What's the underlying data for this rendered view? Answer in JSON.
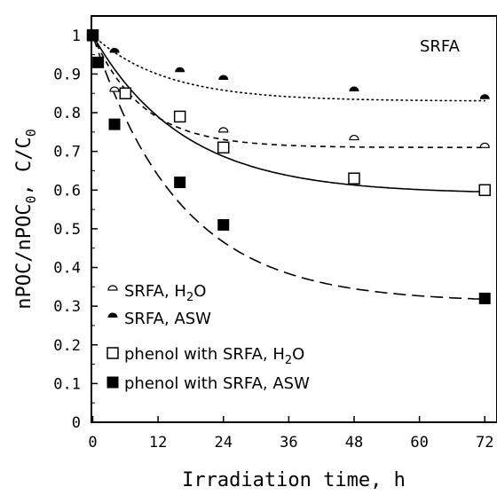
{
  "chart_data": {
    "type": "scatter",
    "annotation": "SRFA",
    "xlabel": "Irradiation time, h",
    "ylabel": {
      "part1": "nPOC/nPOC",
      "sub1": "0",
      "part2": ", C/C",
      "sub2": "0"
    },
    "xlim": [
      0,
      74
    ],
    "ylim": [
      0,
      1.05
    ],
    "xticks": [
      0,
      12,
      24,
      36,
      48,
      60,
      72
    ],
    "yticks": [
      0,
      0.1,
      0.2,
      0.3,
      0.4,
      0.5,
      0.6,
      0.7,
      0.8,
      0.9,
      1
    ],
    "ytick_labels": [
      "0",
      "0.1",
      "0.2",
      "0.3",
      "0.4",
      "0.5",
      "0.6",
      "0.7",
      "0.8",
      "0.9",
      "1"
    ],
    "grid": false,
    "legend_position": "bottom-left",
    "series": [
      {
        "name": "SRFA, H2O",
        "legend": {
          "main": "SRFA, H",
          "sub": "2",
          "tail": "O"
        },
        "marker": "half-circle-open",
        "line": "short-dash",
        "x": [
          0,
          4,
          16,
          24,
          48,
          72
        ],
        "y": [
          1.0,
          0.855,
          0.79,
          0.75,
          0.73,
          0.71
        ],
        "fit": {
          "plateau": 0.71,
          "k": 0.11
        }
      },
      {
        "name": "SRFA, ASW",
        "legend": {
          "main": "SRFA, ASW",
          "sub": "",
          "tail": ""
        },
        "marker": "half-circle-filled",
        "line": "dotted",
        "x": [
          0,
          4,
          16,
          24,
          48,
          72
        ],
        "y": [
          1.0,
          0.955,
          0.905,
          0.885,
          0.855,
          0.835
        ],
        "fit": {
          "plateau": 0.83,
          "k": 0.075
        }
      },
      {
        "name": "phenol with SRFA, H2O",
        "legend": {
          "main": "phenol with SRFA, H",
          "sub": "2",
          "tail": "O"
        },
        "marker": "square-open",
        "line": "solid",
        "x": [
          0,
          6,
          16,
          24,
          48,
          72
        ],
        "y": [
          1.0,
          0.85,
          0.79,
          0.71,
          0.63,
          0.6
        ],
        "fit": {
          "plateau": 0.59,
          "k": 0.06
        }
      },
      {
        "name": "phenol with SRFA, ASW",
        "legend": {
          "main": "phenol with SRFA, ASW",
          "sub": "",
          "tail": ""
        },
        "marker": "square-filled",
        "line": "long-dash",
        "x": [
          0,
          1,
          4,
          16,
          24,
          72
        ],
        "y": [
          1.0,
          0.93,
          0.77,
          0.62,
          0.51,
          0.32
        ],
        "fit": {
          "plateau": 0.31,
          "k": 0.062
        }
      }
    ]
  }
}
